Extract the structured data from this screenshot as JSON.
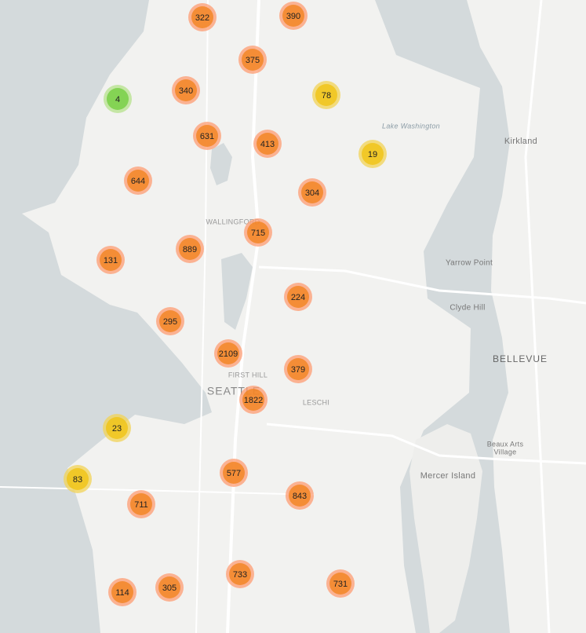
{
  "map": {
    "places": [
      "Lake Washington",
      "Kirkland",
      "WALLINGFORD",
      "Yarrow Point",
      "Clyde Hill",
      "BELLEVUE",
      "FIRST HILL",
      "SEATTLE",
      "LESCHI",
      "Beaux Arts",
      "Village",
      "Mercer Island"
    ],
    "clusters": [
      322,
      390,
      375,
      4,
      340,
      78,
      631,
      413,
      19,
      644,
      304,
      715,
      889,
      131,
      224,
      295,
      2109,
      379,
      1822,
      23,
      83,
      577,
      843,
      711,
      733,
      731,
      114,
      305
    ]
  }
}
